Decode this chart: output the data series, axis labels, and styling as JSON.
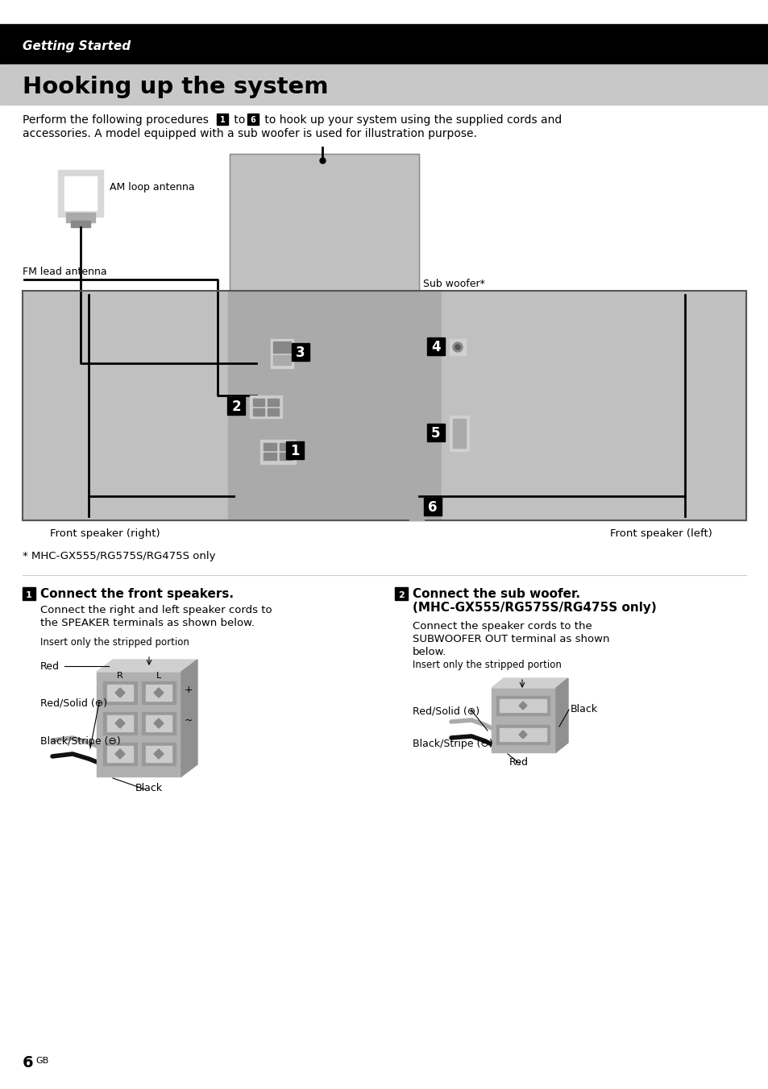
{
  "page_bg": "#ffffff",
  "header_bg": "#000000",
  "subheader_bg": "#c8c8c8",
  "header_text": "Getting Started",
  "header_text_color": "#ffffff",
  "subheader_text": "Hooking up the system",
  "subheader_text_color": "#000000",
  "footnote": "* MHC-GX555/RG575S/RG475S only",
  "section1_title": "Connect the front speakers.",
  "section1_body1": "Connect the right and left speaker cords to",
  "section1_body2": "the SPEAKER terminals as shown below.",
  "section1_insert": "Insert only the stripped portion",
  "section2_title": "Connect the sub woofer.",
  "section2_subtitle": "(MHC-GX555/RG575S/RG475S only)",
  "section2_body1": "Connect the speaker cords to the",
  "section2_body2": "SUBWOOFER OUT terminal as shown",
  "section2_body3": "below.",
  "section2_insert": "Insert only the stripped portion",
  "page_number": "6",
  "page_suffix": "GB",
  "label_front_right": "Front speaker (right)",
  "label_front_left": "Front speaker (left)",
  "label_am": "AM loop antenna",
  "label_fm": "FM lead antenna",
  "label_sub": "Sub woofer*",
  "label_red": "Red",
  "label_redsolid1": "Red/Solid (⊕)",
  "label_black1": "Black",
  "label_blackstripe1": "Black/Stripe (⊖)",
  "label_redsolid2": "Red/Solid (⊕)",
  "label_black2": "Black",
  "label_red2": "Red",
  "label_blackstripe2": "Black/Stripe (⊖)",
  "intro1": "Perform the following procedures",
  "intro2": "to hook up your system using the supplied cords and",
  "intro3": "accessories. A model equipped with a sub woofer is used for illustration purpose."
}
